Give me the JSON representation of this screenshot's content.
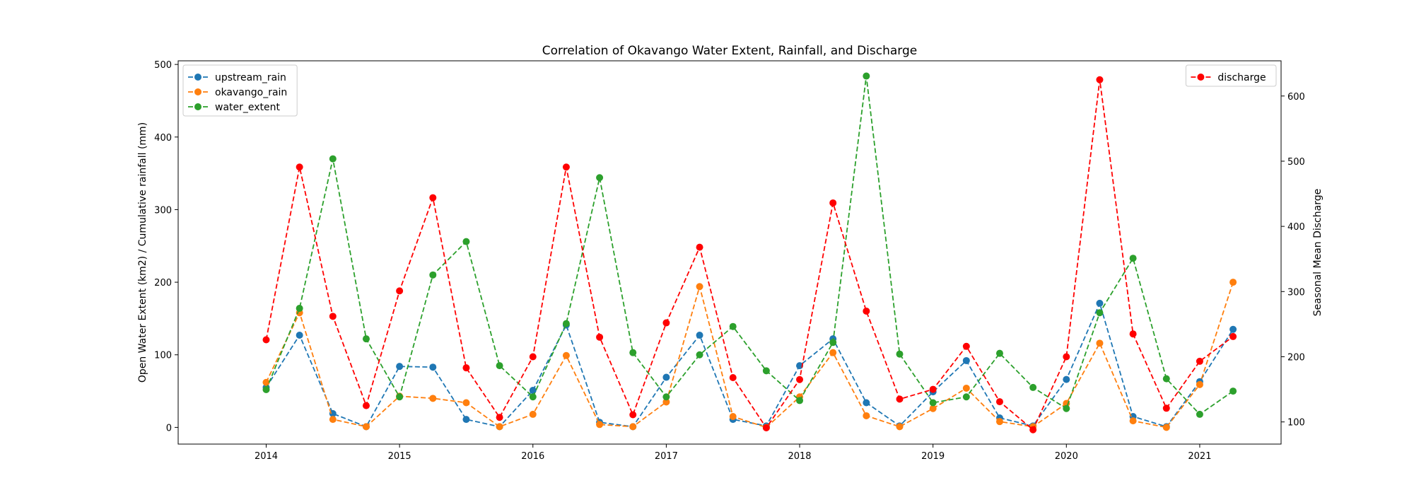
{
  "chart_data": {
    "type": "line",
    "title": "Correlation of Okavango Water Extent, Rainfall, and Discharge",
    "xlabel": "",
    "ylabel": "Open Water Extent (km2) / Cumulative rainfall (mm)",
    "y2label": "Seasonal Mean Discharge",
    "xlim": [
      2013.34,
      2021.61
    ],
    "ylim": [
      -23,
      505
    ],
    "y2lim": [
      66,
      654
    ],
    "x_ticks": [
      2014,
      2015,
      2016,
      2017,
      2018,
      2019,
      2020,
      2021
    ],
    "y_ticks": [
      0,
      100,
      200,
      300,
      400,
      500
    ],
    "y2_ticks": [
      100,
      200,
      300,
      400,
      500,
      600
    ],
    "x": [
      2014.0,
      2014.25,
      2014.5,
      2014.75,
      2015.0,
      2015.25,
      2015.5,
      2015.75,
      2016.0,
      2016.25,
      2016.5,
      2016.75,
      2017.0,
      2017.25,
      2017.5,
      2017.75,
      2018.0,
      2018.25,
      2018.5,
      2018.75,
      2019.0,
      2019.25,
      2019.5,
      2019.75,
      2020.0,
      2020.25,
      2020.5,
      2020.75,
      2021.0,
      2021.25
    ],
    "series": [
      {
        "name": "upstream_rain",
        "axis": "left",
        "color": "#1f77b4",
        "values": [
          55,
          127,
          19,
          1,
          84,
          83,
          11,
          1,
          51,
          141,
          7,
          1,
          69,
          127,
          11,
          2,
          85,
          122,
          34,
          2,
          49,
          92,
          13,
          2,
          66,
          171,
          15,
          1,
          63,
          135
        ]
      },
      {
        "name": "okavango_rain",
        "axis": "left",
        "color": "#ff7f0e",
        "values": [
          62,
          158,
          11,
          1,
          43,
          40,
          34,
          1,
          18,
          99,
          4,
          1,
          35,
          194,
          15,
          0,
          42,
          103,
          16,
          1,
          26,
          54,
          8,
          1,
          33,
          116,
          9,
          0,
          59,
          200
        ]
      },
      {
        "name": "water_extent",
        "axis": "left",
        "color": "#2ca02c",
        "values": [
          52,
          164,
          370,
          122,
          42,
          210,
          256,
          85,
          42,
          143,
          344,
          103,
          42,
          100,
          139,
          78,
          37,
          117,
          484,
          101,
          34,
          42,
          102,
          55,
          26,
          158,
          233,
          67,
          18,
          50
        ]
      },
      {
        "name": "discharge",
        "axis": "right",
        "color": "#ff0000",
        "values": [
          226,
          491,
          262,
          125,
          301,
          444,
          183,
          107,
          200,
          491,
          230,
          111,
          252,
          368,
          168,
          91,
          165,
          436,
          270,
          135,
          150,
          216,
          131,
          88,
          200,
          625,
          235,
          121,
          193,
          231
        ]
      }
    ],
    "legend_left": {
      "placement": "upper-left",
      "entries": [
        "upstream_rain",
        "okavango_rain",
        "water_extent"
      ]
    },
    "legend_right": {
      "placement": "upper-right",
      "entries": [
        "discharge"
      ]
    },
    "grid": false,
    "line_style": "dashed",
    "marker": "circle"
  }
}
